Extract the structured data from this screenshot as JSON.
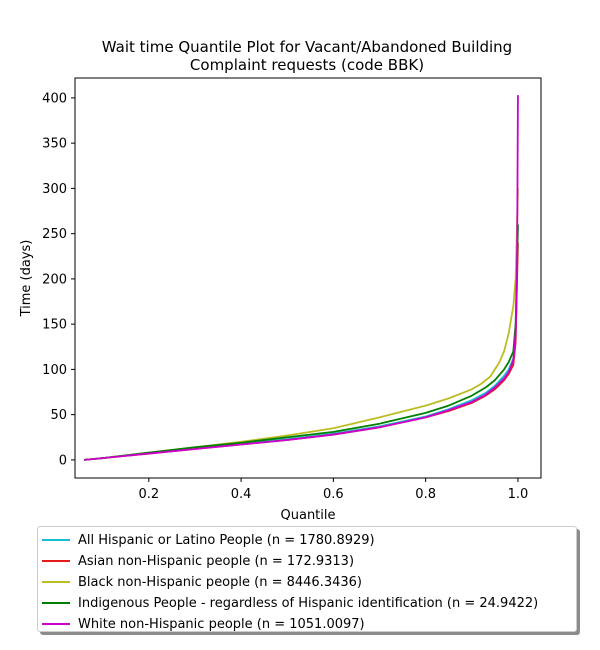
{
  "chart_data": {
    "type": "line",
    "title": "Wait time Quantile Plot for Vacant/Abandoned Building\nComplaint  requests (code BBK)",
    "xlabel": "Quantile",
    "ylabel": "Time (days)",
    "xlim": [
      0.04,
      1.05
    ],
    "ylim": [
      -20,
      422
    ],
    "xticks": [
      0.2,
      0.4,
      0.6,
      0.8,
      1.0
    ],
    "xtick_labels": [
      "0.2",
      "0.4",
      "0.6",
      "0.8",
      "1.0"
    ],
    "yticks": [
      0,
      50,
      100,
      150,
      200,
      250,
      300,
      350,
      400
    ],
    "grid": false,
    "legend_position": "below plot",
    "series": [
      {
        "name": "All Hispanic or Latino People (n = 1780.8929)",
        "color": "#17becf",
        "x": [
          0.06,
          0.1,
          0.2,
          0.3,
          0.4,
          0.5,
          0.6,
          0.7,
          0.8,
          0.85,
          0.9,
          0.93,
          0.95,
          0.97,
          0.98,
          0.99,
          0.995,
          1.0
        ],
        "y": [
          0,
          2,
          8,
          13,
          18,
          23,
          29,
          37,
          48,
          56,
          66,
          74,
          82,
          93,
          100,
          112,
          140,
          260
        ]
      },
      {
        "name": "Asian non-Hispanic people (n = 172.9313)",
        "color": "#e41a1c",
        "x": [
          0.06,
          0.1,
          0.2,
          0.3,
          0.4,
          0.5,
          0.6,
          0.7,
          0.8,
          0.85,
          0.9,
          0.93,
          0.95,
          0.97,
          0.98,
          0.99,
          0.995,
          1.0
        ],
        "y": [
          0,
          2,
          7,
          12,
          17,
          22,
          28,
          36,
          47,
          54,
          63,
          71,
          78,
          88,
          95,
          105,
          130,
          240
        ]
      },
      {
        "name": "Black non-Hispanic people (n = 8446.3436)",
        "color": "#bcbd22",
        "x": [
          0.06,
          0.1,
          0.2,
          0.3,
          0.4,
          0.5,
          0.6,
          0.7,
          0.8,
          0.85,
          0.9,
          0.92,
          0.94,
          0.96,
          0.97,
          0.98,
          0.99,
          0.995,
          1.0
        ],
        "y": [
          0,
          2,
          8,
          14,
          20,
          27,
          35,
          47,
          60,
          68,
          78,
          84,
          92,
          108,
          120,
          140,
          170,
          200,
          300
        ]
      },
      {
        "name": "Indigenous People - regardless of Hispanic identification (n = 24.9422)",
        "color": "#008000",
        "x": [
          0.06,
          0.1,
          0.2,
          0.3,
          0.4,
          0.5,
          0.6,
          0.7,
          0.8,
          0.85,
          0.9,
          0.93,
          0.95,
          0.97,
          0.98,
          0.99,
          0.995,
          1.0
        ],
        "y": [
          0,
          2,
          8,
          14,
          19,
          25,
          31,
          40,
          52,
          60,
          71,
          80,
          88,
          100,
          108,
          120,
          150,
          260
        ]
      },
      {
        "name": "White non-Hispanic people (n = 1051.0097)",
        "color": "#cc00cc",
        "x": [
          0.06,
          0.1,
          0.2,
          0.3,
          0.4,
          0.5,
          0.6,
          0.7,
          0.8,
          0.85,
          0.9,
          0.93,
          0.95,
          0.97,
          0.98,
          0.99,
          0.995,
          0.998,
          1.0
        ],
        "y": [
          0,
          2,
          7,
          12,
          17,
          22,
          28,
          36,
          47,
          55,
          64,
          72,
          80,
          90,
          97,
          110,
          140,
          200,
          403
        ]
      }
    ]
  }
}
